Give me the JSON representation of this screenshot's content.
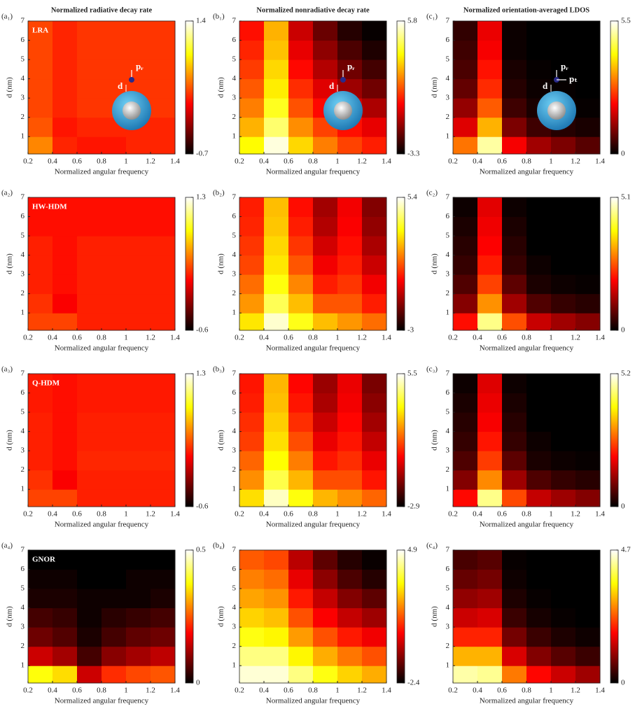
{
  "chart_data": [
    {
      "type": "heatmap",
      "panel": "(a₁)",
      "title": "Normalized radiative decay rate",
      "annotation": "LRA",
      "inset_labels": [
        "pᵣ",
        "d"
      ],
      "xlabel": "Normalized angular frequency",
      "ylabel": "d (nm)",
      "colormap": "hot",
      "xlim": [
        0.2,
        1.4
      ],
      "xticks": [
        0.2,
        0.4,
        0.6,
        0.8,
        1,
        1.2,
        1.4
      ],
      "ylim": [
        0.1,
        7
      ],
      "yticks": [
        1,
        2,
        3,
        4,
        5,
        6,
        7
      ],
      "zlim": [
        -0.7,
        1.4
      ],
      "zticks": [
        -0.7,
        1.4
      ],
      "x": [
        0.3,
        0.5,
        0.7,
        0.9,
        1.1,
        1.3
      ],
      "y": [
        0.5,
        1.5,
        2.5,
        3.5,
        4.5,
        5.5,
        6.5
      ],
      "z": [
        [
          0.5,
          0.2,
          0.15,
          0.15,
          0.2,
          0.2
        ],
        [
          0.35,
          0.15,
          0.2,
          0.2,
          0.2,
          0.2
        ],
        [
          0.3,
          0.2,
          0.25,
          0.25,
          0.25,
          0.25
        ],
        [
          0.3,
          0.2,
          0.25,
          0.25,
          0.25,
          0.25
        ],
        [
          0.3,
          0.2,
          0.25,
          0.25,
          0.25,
          0.25
        ],
        [
          0.3,
          0.2,
          0.25,
          0.25,
          0.25,
          0.25
        ],
        [
          0.3,
          0.2,
          0.25,
          0.25,
          0.25,
          0.25
        ]
      ]
    },
    {
      "type": "heatmap",
      "panel": "(b₁)",
      "title": "Normalized nonradiative decay rate",
      "inset_labels": [
        "pᵣ",
        "d"
      ],
      "xlabel": "Normalized angular frequency",
      "ylabel": "d (nm)",
      "colormap": "hot",
      "xlim": [
        0.2,
        1.4
      ],
      "xticks": [
        0.2,
        0.4,
        0.6,
        0.8,
        1,
        1.2,
        1.4
      ],
      "ylim": [
        0.1,
        7
      ],
      "yticks": [
        1,
        2,
        3,
        4,
        5,
        6,
        7
      ],
      "zlim": [
        -3.3,
        5.8
      ],
      "zticks": [
        -3.3,
        5.8
      ],
      "x": [
        0.3,
        0.5,
        0.7,
        0.9,
        1.1,
        1.3
      ],
      "y": [
        0.5,
        1.5,
        2.5,
        3.5,
        4.5,
        5.5,
        6.5
      ],
      "z": [
        [
          3.5,
          5.5,
          3.0,
          1.8,
          1.0,
          0.5
        ],
        [
          2.5,
          4.5,
          2.0,
          1.0,
          0.3,
          -0.2
        ],
        [
          1.8,
          3.8,
          1.2,
          0.2,
          -0.5,
          -1.0
        ],
        [
          1.3,
          3.3,
          0.7,
          -0.3,
          -1.2,
          -1.8
        ],
        [
          0.9,
          3.0,
          0.2,
          -0.9,
          -1.8,
          -2.4
        ],
        [
          0.6,
          2.7,
          -0.2,
          -1.4,
          -2.3,
          -2.9
        ],
        [
          0.3,
          2.5,
          -0.6,
          -1.9,
          -2.8,
          -3.2
        ]
      ]
    },
    {
      "type": "heatmap",
      "panel": "(c₁)",
      "title": "Normalized orientation-averaged LDOS",
      "inset_labels": [
        "pᵣ",
        "d",
        "pₜ"
      ],
      "xlabel": "Normalized angular frequency",
      "ylabel": "d (nm)",
      "colormap": "hot",
      "xlim": [
        0.2,
        1.4
      ],
      "xticks": [
        0.2,
        0.4,
        0.6,
        0.8,
        1,
        1.2,
        1.4
      ],
      "ylim": [
        0.1,
        7
      ],
      "yticks": [
        1,
        2,
        3,
        4,
        5,
        6,
        7
      ],
      "zlim": [
        0,
        5.5
      ],
      "zticks": [
        0,
        5.5
      ],
      "x": [
        0.3,
        0.5,
        0.7,
        0.9,
        1.1,
        1.3
      ],
      "y": [
        0.5,
        1.5,
        2.5,
        3.5,
        4.5,
        5.5,
        6.5
      ],
      "z": [
        [
          3.0,
          5.0,
          2.0,
          1.3,
          1.0,
          0.7
        ],
        [
          1.8,
          3.5,
          1.0,
          0.5,
          0.3,
          0.2
        ],
        [
          1.2,
          2.8,
          0.5,
          0.2,
          0.1,
          0.05
        ],
        [
          0.8,
          2.4,
          0.3,
          0.1,
          0.05,
          0
        ],
        [
          0.6,
          2.2,
          0.2,
          0.05,
          0,
          0
        ],
        [
          0.5,
          2.0,
          0.1,
          0,
          0,
          0
        ],
        [
          0.4,
          1.9,
          0.1,
          0,
          0,
          0
        ]
      ]
    },
    {
      "type": "heatmap",
      "panel": "(a₂)",
      "annotation": "HW-HDM",
      "xlabel": "Normalized angular frequency",
      "ylabel": "d (nm)",
      "colormap": "hot",
      "xlim": [
        0.2,
        1.4
      ],
      "xticks": [
        0.2,
        0.4,
        0.6,
        0.8,
        1,
        1.2,
        1.4
      ],
      "ylim": [
        0.1,
        7
      ],
      "yticks": [
        1,
        2,
        3,
        4,
        5,
        6,
        7
      ],
      "zlim": [
        -0.6,
        1.3
      ],
      "zticks": [
        -0.6,
        1.3
      ],
      "x": [
        0.3,
        0.5,
        0.7,
        0.9,
        1.1,
        1.3
      ],
      "y": [
        0.5,
        1.5,
        2.5,
        3.5,
        4.5,
        5.5,
        6.5
      ],
      "z": [
        [
          0.3,
          0.3,
          0.2,
          0.2,
          0.2,
          0.2
        ],
        [
          0.25,
          0.1,
          0.2,
          0.2,
          0.2,
          0.2
        ],
        [
          0.2,
          0.15,
          0.2,
          0.2,
          0.2,
          0.2
        ],
        [
          0.2,
          0.15,
          0.2,
          0.2,
          0.2,
          0.2
        ],
        [
          0.2,
          0.15,
          0.2,
          0.2,
          0.2,
          0.2
        ],
        [
          0.15,
          0.15,
          0.15,
          0.15,
          0.15,
          0.15
        ],
        [
          0.15,
          0.15,
          0.15,
          0.15,
          0.15,
          0.15
        ]
      ]
    },
    {
      "type": "heatmap",
      "panel": "(b₂)",
      "xlabel": "Normalized angular frequency",
      "ylabel": "d (nm)",
      "colormap": "hot",
      "xlim": [
        0.2,
        1.4
      ],
      "xticks": [
        0.2,
        0.4,
        0.6,
        0.8,
        1,
        1.2,
        1.4
      ],
      "ylim": [
        0.1,
        7
      ],
      "yticks": [
        1,
        2,
        3,
        4,
        5,
        6,
        7
      ],
      "zlim": [
        -3,
        5.4
      ],
      "zticks": [
        -3,
        5.4
      ],
      "x": [
        0.3,
        0.5,
        0.7,
        0.9,
        1.1,
        1.3
      ],
      "y": [
        0.5,
        1.5,
        2.5,
        3.5,
        4.5,
        5.5,
        6.5
      ],
      "z": [
        [
          3.0,
          5.0,
          3.5,
          2.5,
          2.0,
          1.5
        ],
        [
          2.0,
          4.0,
          2.5,
          1.2,
          1.2,
          0.5
        ],
        [
          1.5,
          3.4,
          1.8,
          0.5,
          0.8,
          0
        ],
        [
          1.0,
          3.0,
          1.2,
          0,
          0.5,
          -0.5
        ],
        [
          0.8,
          2.8,
          0.8,
          -0.4,
          0.3,
          -0.9
        ],
        [
          0.6,
          2.6,
          0.5,
          -0.8,
          0.1,
          -1.2
        ],
        [
          0.5,
          2.5,
          0.3,
          -1.0,
          0,
          -1.4
        ]
      ]
    },
    {
      "type": "heatmap",
      "panel": "(c₂)",
      "xlabel": "Normalized angular frequency",
      "ylabel": "d (nm)",
      "colormap": "hot",
      "xlim": [
        0.2,
        1.4
      ],
      "xticks": [
        0.2,
        0.4,
        0.6,
        0.8,
        1,
        1.2,
        1.4
      ],
      "ylim": [
        0.1,
        7
      ],
      "yticks": [
        1,
        2,
        3,
        4,
        5,
        6,
        7
      ],
      "zlim": [
        0,
        5.1
      ],
      "zticks": [
        0,
        5.1
      ],
      "x": [
        0.3,
        0.5,
        0.7,
        0.9,
        1.1,
        1.3
      ],
      "y": [
        0.5,
        1.5,
        2.5,
        3.5,
        4.5,
        5.5,
        6.5
      ],
      "z": [
        [
          2.0,
          4.5,
          2.5,
          1.5,
          1.2,
          1.0
        ],
        [
          1.0,
          3.0,
          1.2,
          0.6,
          0.4,
          0.3
        ],
        [
          0.6,
          2.4,
          0.7,
          0.2,
          0.1,
          0.05
        ],
        [
          0.4,
          2.1,
          0.4,
          0.1,
          0,
          0
        ],
        [
          0.3,
          1.9,
          0.3,
          0,
          0,
          0
        ],
        [
          0.2,
          1.8,
          0.2,
          0,
          0,
          0
        ],
        [
          0.1,
          1.7,
          0.1,
          0,
          0,
          0
        ]
      ]
    },
    {
      "type": "heatmap",
      "panel": "(a₃)",
      "annotation": "Q-HDM",
      "xlabel": "Normalized angular frequency",
      "ylabel": "d (nm)",
      "colormap": "hot",
      "xlim": [
        0.2,
        1.4
      ],
      "xticks": [
        0.2,
        0.4,
        0.6,
        0.8,
        1,
        1.2,
        1.4
      ],
      "ylim": [
        0.1,
        7
      ],
      "yticks": [
        1,
        2,
        3,
        4,
        5,
        6,
        7
      ],
      "zlim": [
        -0.6,
        1.3
      ],
      "zticks": [
        -0.6,
        1.3
      ],
      "x": [
        0.3,
        0.5,
        0.7,
        0.9,
        1.1,
        1.3
      ],
      "y": [
        0.5,
        1.5,
        2.5,
        3.5,
        4.5,
        5.5,
        6.5
      ],
      "z": [
        [
          0.3,
          0.3,
          0.2,
          0.2,
          0.2,
          0.2
        ],
        [
          0.25,
          0.1,
          0.2,
          0.2,
          0.2,
          0.2
        ],
        [
          0.2,
          0.15,
          0.22,
          0.22,
          0.22,
          0.22
        ],
        [
          0.2,
          0.15,
          0.2,
          0.2,
          0.2,
          0.2
        ],
        [
          0.2,
          0.15,
          0.2,
          0.2,
          0.2,
          0.2
        ],
        [
          0.18,
          0.15,
          0.18,
          0.18,
          0.18,
          0.18
        ],
        [
          0.18,
          0.15,
          0.18,
          0.18,
          0.18,
          0.18
        ]
      ]
    },
    {
      "type": "heatmap",
      "panel": "(b₃)",
      "xlabel": "Normalized angular frequency",
      "ylabel": "d (nm)",
      "colormap": "hot",
      "xlim": [
        0.2,
        1.4
      ],
      "xticks": [
        0.2,
        0.4,
        0.6,
        0.8,
        1,
        1.2,
        1.4
      ],
      "ylim": [
        0.1,
        7
      ],
      "yticks": [
        1,
        2,
        3,
        4,
        5,
        6,
        7
      ],
      "zlim": [
        -2.9,
        5.5
      ],
      "zticks": [
        -2.9,
        5.5
      ],
      "x": [
        0.3,
        0.5,
        0.7,
        0.9,
        1.1,
        1.3
      ],
      "y": [
        0.5,
        1.5,
        2.5,
        3.5,
        4.5,
        5.5,
        6.5
      ],
      "z": [
        [
          3.0,
          5.0,
          3.5,
          2.5,
          2.0,
          1.5
        ],
        [
          2.0,
          4.0,
          2.5,
          1.2,
          1.2,
          0.5
        ],
        [
          1.5,
          3.4,
          1.8,
          0.5,
          0.8,
          0
        ],
        [
          1.0,
          3.0,
          1.2,
          0,
          0.5,
          -0.5
        ],
        [
          0.8,
          2.8,
          0.8,
          -0.4,
          0.3,
          -0.9
        ],
        [
          0.6,
          2.6,
          0.5,
          -0.8,
          0.1,
          -1.2
        ],
        [
          0.5,
          2.5,
          0.3,
          -1.0,
          0,
          -1.4
        ]
      ]
    },
    {
      "type": "heatmap",
      "panel": "(c₃)",
      "xlabel": "Normalized angular frequency",
      "ylabel": "d (nm)",
      "colormap": "hot",
      "xlim": [
        0.2,
        1.4
      ],
      "xticks": [
        0.2,
        0.4,
        0.6,
        0.8,
        1,
        1.2,
        1.4
      ],
      "ylim": [
        0.1,
        7
      ],
      "yticks": [
        1,
        2,
        3,
        4,
        5,
        6,
        7
      ],
      "zlim": [
        0,
        5.2
      ],
      "zticks": [
        0,
        5.2
      ],
      "x": [
        0.3,
        0.5,
        0.7,
        0.9,
        1.1,
        1.3
      ],
      "y": [
        0.5,
        1.5,
        2.5,
        3.5,
        4.5,
        5.5,
        6.5
      ],
      "z": [
        [
          2.0,
          4.6,
          2.5,
          1.5,
          1.2,
          1.0
        ],
        [
          1.0,
          3.0,
          1.2,
          0.6,
          0.4,
          0.3
        ],
        [
          0.6,
          2.4,
          0.7,
          0.2,
          0.1,
          0.05
        ],
        [
          0.4,
          2.1,
          0.4,
          0.1,
          0,
          0
        ],
        [
          0.3,
          1.9,
          0.3,
          0,
          0,
          0
        ],
        [
          0.2,
          1.8,
          0.2,
          0,
          0,
          0
        ],
        [
          0.1,
          1.7,
          0.1,
          0,
          0,
          0
        ]
      ]
    },
    {
      "type": "heatmap",
      "panel": "(a₄)",
      "annotation": "GNOR",
      "xlabel": "Normalized angular frequency",
      "ylabel": "d (nm)",
      "colormap": "hot",
      "xlim": [
        0.2,
        1.4
      ],
      "xticks": [
        0.2,
        0.4,
        0.6,
        0.8,
        1,
        1.2,
        1.4
      ],
      "ylim": [
        0.1,
        7
      ],
      "yticks": [
        1,
        2,
        3,
        4,
        5,
        6,
        7
      ],
      "zlim": [
        0,
        0.5
      ],
      "zticks": [
        0,
        0.5
      ],
      "x": [
        0.3,
        0.5,
        0.7,
        0.9,
        1.1,
        1.3
      ],
      "y": [
        0.5,
        1.5,
        2.5,
        3.5,
        4.5,
        5.5,
        6.5
      ],
      "z": [
        [
          0.38,
          0.35,
          0.15,
          0.22,
          0.24,
          0.25
        ],
        [
          0.15,
          0.12,
          0.05,
          0.1,
          0.12,
          0.14
        ],
        [
          0.08,
          0.06,
          0.02,
          0.05,
          0.07,
          0.08
        ],
        [
          0.05,
          0.04,
          0.01,
          0.03,
          0.04,
          0.05
        ],
        [
          0.02,
          0.02,
          0.01,
          0.01,
          0.01,
          0.02
        ],
        [
          0.01,
          0.01,
          0,
          0,
          0.01,
          0.01
        ],
        [
          0,
          0,
          0,
          0,
          0,
          0
        ]
      ]
    },
    {
      "type": "heatmap",
      "panel": "(b₄)",
      "xlabel": "Normalized angular frequency",
      "ylabel": "d (nm)",
      "colormap": "hot",
      "xlim": [
        0.2,
        1.4
      ],
      "xticks": [
        0.2,
        0.4,
        0.6,
        0.8,
        1,
        1.2,
        1.4
      ],
      "ylim": [
        0.1,
        7
      ],
      "yticks": [
        1,
        2,
        3,
        4,
        5,
        6,
        7
      ],
      "zlim": [
        -2.4,
        4.9
      ],
      "zticks": [
        -2.4,
        4.9
      ],
      "x": [
        0.3,
        0.5,
        0.7,
        0.9,
        1.1,
        1.3
      ],
      "y": [
        0.5,
        1.5,
        2.5,
        3.5,
        4.5,
        5.5,
        6.5
      ],
      "z": [
        [
          4.6,
          4.6,
          4.0,
          3.2,
          2.6,
          2.2
        ],
        [
          4.0,
          4.0,
          3.0,
          2.2,
          1.6,
          1.2
        ],
        [
          3.2,
          3.0,
          2.0,
          1.2,
          0.6,
          0.2
        ],
        [
          2.6,
          2.4,
          1.2,
          0.3,
          -0.3,
          -0.7
        ],
        [
          2.1,
          1.9,
          0.6,
          -0.3,
          -1.0,
          -1.4
        ],
        [
          1.7,
          1.5,
          0.1,
          -0.9,
          -1.6,
          -2.0
        ],
        [
          1.3,
          1.1,
          -0.4,
          -1.4,
          -2.0,
          -2.3
        ]
      ]
    },
    {
      "type": "heatmap",
      "panel": "(c₄)",
      "xlabel": "Normalized angular frequency",
      "ylabel": "d (nm)",
      "colormap": "hot",
      "xlim": [
        0.2,
        1.4
      ],
      "xticks": [
        0.2,
        0.4,
        0.6,
        0.8,
        1,
        1.2,
        1.4
      ],
      "ylim": [
        0.1,
        7
      ],
      "yticks": [
        1,
        2,
        3,
        4,
        5,
        6,
        7
      ],
      "zlim": [
        0,
        4.7
      ],
      "zticks": [
        0,
        4.7
      ],
      "x": [
        0.3,
        0.5,
        0.7,
        0.9,
        1.1,
        1.3
      ],
      "y": [
        0.5,
        1.5,
        2.5,
        3.5,
        4.5,
        5.5,
        6.5
      ],
      "z": [
        [
          4.3,
          4.2,
          2.6,
          1.8,
          1.4,
          1.1
        ],
        [
          3.0,
          3.0,
          1.5,
          0.9,
          0.6,
          0.4
        ],
        [
          2.0,
          2.0,
          0.8,
          0.4,
          0.2,
          0.1
        ],
        [
          1.4,
          1.5,
          0.4,
          0.15,
          0.05,
          0
        ],
        [
          1.0,
          1.1,
          0.2,
          0.05,
          0,
          0
        ],
        [
          0.7,
          0.8,
          0.1,
          0,
          0,
          0
        ],
        [
          0.5,
          0.6,
          0.05,
          0,
          0,
          0
        ]
      ]
    }
  ]
}
